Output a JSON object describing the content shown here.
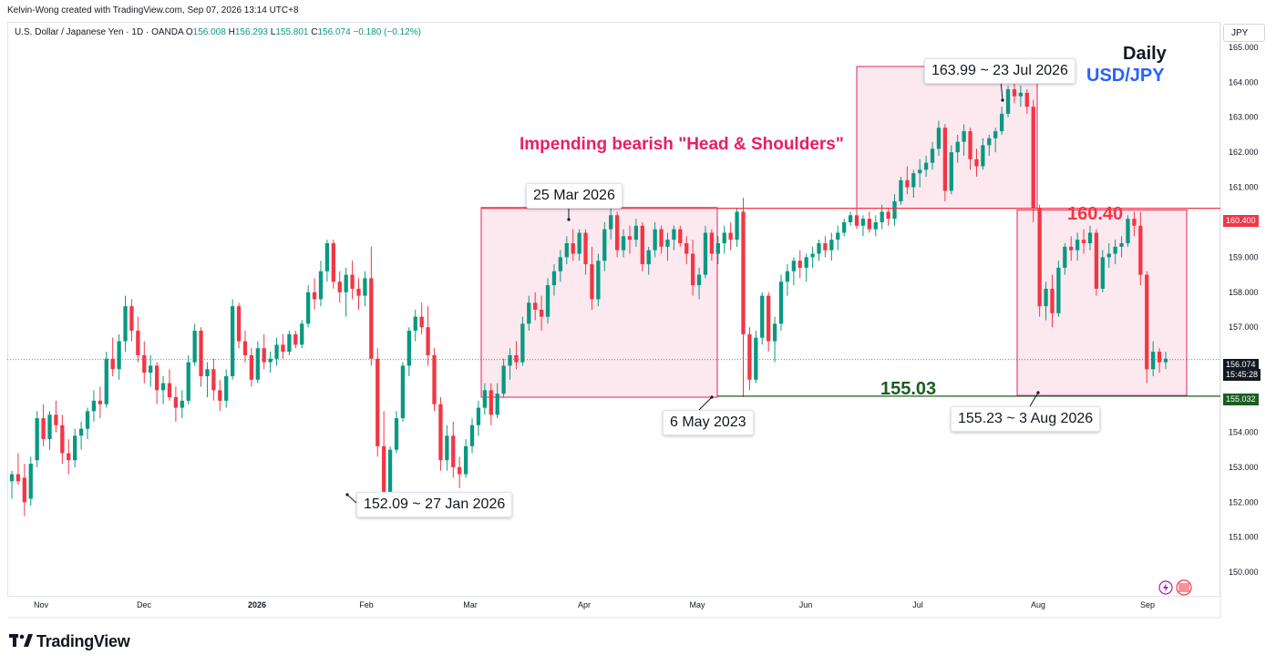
{
  "header": {
    "byline": "Kelvin-Wong created with TradingView.com, Sep 07, 2026 13:14 UTC+8",
    "symbol": "U.S. Dollar / Japanese Yen · 1D · OANDA",
    "open_label": "O",
    "open": "156.008",
    "high_label": "H",
    "high": "156.293",
    "low_label": "L",
    "low": "155.801",
    "close_label": "C",
    "close": "156.074",
    "change": "−0.180 (−0.12%)"
  },
  "currency": "JPY",
  "labels": {
    "daily": "Daily",
    "pair": "USD/JPY",
    "pattern": "Impending bearish \"Head & Shoulders\"",
    "resistance": "160.40",
    "support": "155.03"
  },
  "callouts": [
    {
      "id": "head",
      "text": "163.99 ~ 23 Jul 2026"
    },
    {
      "id": "left-shoulder",
      "text": "25 Mar 2026"
    },
    {
      "id": "may-low",
      "text": "6 May 2023"
    },
    {
      "id": "jan-low",
      "text": "152.09 ~ 27 Jan 2026"
    },
    {
      "id": "aug-low",
      "text": "155.23 ~ 3 Aug 2026"
    }
  ],
  "price_badges": {
    "resistance": "160.400",
    "support": "155.032",
    "last": "156.074",
    "countdown": "15:45:28"
  },
  "brand": "TradingView",
  "colors": {
    "up": "#089981",
    "down": "#f23645",
    "resistance": "#f23645",
    "support": "#1b5e20",
    "box_fill": "#fce4ec",
    "box_stroke": "#e91e63"
  },
  "chart_data": {
    "type": "candlestick",
    "y_axis": {
      "ticks": [
        "150.000",
        "151.000",
        "152.000",
        "153.000",
        "154.000",
        "155.000",
        "156.000",
        "157.000",
        "158.000",
        "159.000",
        "160.000",
        "161.000",
        "162.000",
        "163.000",
        "164.000",
        "165.000"
      ],
      "range": [
        149.3,
        165.7
      ]
    },
    "x_axis": {
      "ticks": [
        "Nov",
        "Dec",
        "2026",
        "Feb",
        "Mar",
        "Apr",
        "May",
        "Jun",
        "Jul",
        "Aug",
        "Sep"
      ]
    },
    "horizontal_lines": [
      {
        "value": 160.4
      },
      {
        "value": 155.03
      }
    ],
    "candles_ohlc": [
      [
        152.6,
        152.9,
        152.1,
        152.8
      ],
      [
        152.8,
        153.4,
        152.5,
        152.6
      ],
      [
        152.7,
        153.1,
        151.6,
        152.0
      ],
      [
        152.1,
        153.3,
        151.9,
        153.1
      ],
      [
        153.2,
        154.6,
        153.0,
        154.4
      ],
      [
        154.4,
        154.8,
        153.6,
        153.8
      ],
      [
        153.8,
        154.6,
        153.5,
        154.5
      ],
      [
        154.5,
        154.9,
        154.0,
        154.2
      ],
      [
        154.2,
        154.5,
        153.1,
        153.4
      ],
      [
        153.4,
        153.8,
        152.8,
        153.2
      ],
      [
        153.2,
        154.1,
        153.0,
        153.9
      ],
      [
        153.9,
        154.3,
        153.5,
        154.1
      ],
      [
        154.1,
        154.7,
        153.8,
        154.6
      ],
      [
        154.6,
        155.2,
        154.3,
        154.9
      ],
      [
        154.9,
        155.3,
        154.4,
        154.8
      ],
      [
        154.8,
        156.3,
        154.7,
        156.1
      ],
      [
        156.1,
        156.7,
        155.6,
        155.8
      ],
      [
        155.8,
        156.8,
        155.5,
        156.6
      ],
      [
        156.6,
        157.9,
        156.3,
        157.6
      ],
      [
        157.6,
        157.8,
        156.6,
        156.9
      ],
      [
        156.9,
        157.3,
        156.0,
        156.2
      ],
      [
        156.2,
        156.6,
        155.4,
        155.7
      ],
      [
        155.7,
        156.2,
        155.3,
        155.9
      ],
      [
        155.9,
        156.0,
        154.8,
        155.2
      ],
      [
        155.2,
        155.6,
        154.8,
        155.4
      ],
      [
        155.4,
        155.8,
        154.9,
        155.0
      ],
      [
        155.0,
        155.3,
        154.3,
        154.7
      ],
      [
        154.7,
        155.2,
        154.4,
        154.9
      ],
      [
        154.9,
        156.2,
        154.8,
        156.0
      ],
      [
        156.0,
        157.1,
        155.9,
        156.9
      ],
      [
        156.9,
        157.0,
        155.3,
        155.6
      ],
      [
        155.6,
        156.0,
        155.0,
        155.8
      ],
      [
        155.8,
        156.1,
        154.9,
        155.2
      ],
      [
        155.2,
        155.5,
        154.6,
        154.9
      ],
      [
        154.9,
        155.8,
        154.7,
        155.6
      ],
      [
        155.6,
        157.8,
        155.5,
        157.6
      ],
      [
        157.6,
        157.7,
        156.4,
        156.6
      ],
      [
        156.6,
        156.9,
        156.0,
        156.2
      ],
      [
        156.2,
        156.4,
        155.3,
        155.5
      ],
      [
        155.5,
        156.6,
        155.4,
        156.4
      ],
      [
        156.4,
        156.8,
        155.8,
        156.0
      ],
      [
        156.0,
        156.3,
        155.7,
        156.1
      ],
      [
        156.1,
        156.7,
        155.9,
        156.5
      ],
      [
        156.5,
        156.8,
        156.1,
        156.3
      ],
      [
        156.3,
        156.9,
        156.2,
        156.8
      ],
      [
        156.8,
        156.9,
        156.4,
        156.5
      ],
      [
        156.5,
        157.2,
        156.4,
        157.1
      ],
      [
        157.1,
        158.2,
        157.0,
        158.0
      ],
      [
        158.0,
        158.4,
        157.5,
        157.8
      ],
      [
        157.8,
        158.9,
        157.6,
        158.6
      ],
      [
        158.6,
        159.5,
        158.3,
        159.4
      ],
      [
        159.4,
        159.5,
        158.1,
        158.3
      ],
      [
        158.3,
        158.6,
        157.7,
        158.0
      ],
      [
        158.0,
        158.7,
        157.3,
        158.5
      ],
      [
        158.5,
        158.9,
        157.8,
        158.1
      ],
      [
        158.1,
        158.4,
        157.5,
        157.9
      ],
      [
        157.9,
        158.6,
        157.6,
        158.4
      ],
      [
        158.4,
        159.3,
        155.9,
        156.1
      ],
      [
        156.1,
        156.4,
        153.3,
        153.6
      ],
      [
        153.6,
        154.6,
        152.1,
        152.3
      ],
      [
        152.3,
        153.6,
        152.2,
        153.5
      ],
      [
        153.5,
        154.6,
        153.4,
        154.4
      ],
      [
        154.4,
        156.0,
        154.3,
        155.9
      ],
      [
        155.9,
        157.0,
        155.6,
        156.9
      ],
      [
        156.9,
        157.5,
        156.6,
        157.3
      ],
      [
        157.3,
        157.7,
        156.8,
        157.0
      ],
      [
        157.0,
        157.6,
        155.9,
        156.2
      ],
      [
        156.2,
        156.4,
        154.6,
        154.8
      ],
      [
        154.8,
        155.0,
        152.9,
        153.2
      ],
      [
        153.2,
        154.2,
        152.9,
        153.9
      ],
      [
        153.9,
        154.3,
        152.7,
        153.0
      ],
      [
        153.0,
        153.3,
        152.4,
        152.8
      ],
      [
        152.8,
        153.8,
        152.7,
        153.6
      ],
      [
        153.6,
        154.4,
        153.4,
        154.2
      ],
      [
        154.2,
        154.9,
        153.9,
        154.7
      ],
      [
        154.7,
        155.4,
        154.5,
        155.2
      ],
      [
        155.2,
        155.4,
        154.2,
        154.5
      ],
      [
        154.5,
        155.4,
        154.4,
        155.1
      ],
      [
        155.1,
        156.1,
        155.0,
        155.9
      ],
      [
        155.9,
        156.4,
        155.5,
        156.2
      ],
      [
        156.2,
        156.6,
        155.8,
        156.0
      ],
      [
        156.0,
        157.3,
        155.9,
        157.1
      ],
      [
        157.1,
        157.9,
        156.9,
        157.7
      ],
      [
        157.7,
        158.0,
        157.2,
        157.5
      ],
      [
        157.5,
        157.9,
        156.9,
        157.3
      ],
      [
        157.3,
        158.4,
        157.1,
        158.2
      ],
      [
        158.2,
        158.8,
        157.9,
        158.6
      ],
      [
        158.6,
        159.2,
        158.3,
        159.0
      ],
      [
        159.0,
        159.6,
        158.8,
        159.4
      ],
      [
        159.4,
        159.8,
        158.9,
        159.1
      ],
      [
        159.1,
        159.8,
        158.9,
        159.7
      ],
      [
        159.7,
        159.8,
        158.5,
        158.8
      ],
      [
        158.8,
        159.3,
        157.5,
        157.8
      ],
      [
        157.8,
        159.1,
        157.6,
        158.9
      ],
      [
        158.9,
        160.0,
        158.6,
        159.8
      ],
      [
        159.8,
        160.4,
        159.5,
        160.2
      ],
      [
        160.2,
        160.3,
        159.0,
        159.2
      ],
      [
        159.2,
        159.8,
        159.0,
        159.6
      ],
      [
        159.6,
        159.9,
        159.1,
        159.5
      ],
      [
        159.5,
        160.1,
        159.3,
        159.9
      ],
      [
        159.9,
        160.0,
        158.6,
        158.8
      ],
      [
        158.8,
        159.3,
        158.5,
        159.2
      ],
      [
        159.2,
        160.0,
        159.0,
        159.8
      ],
      [
        159.8,
        159.9,
        159.1,
        159.3
      ],
      [
        159.3,
        159.7,
        158.9,
        159.5
      ],
      [
        159.5,
        159.9,
        159.2,
        159.8
      ],
      [
        159.8,
        159.9,
        159.3,
        159.4
      ],
      [
        159.4,
        159.6,
        158.8,
        159.1
      ],
      [
        159.1,
        159.5,
        157.9,
        158.2
      ],
      [
        158.2,
        158.7,
        157.8,
        158.5
      ],
      [
        158.5,
        159.9,
        158.4,
        159.7
      ],
      [
        159.7,
        159.8,
        158.9,
        159.1
      ],
      [
        159.1,
        159.6,
        158.8,
        159.4
      ],
      [
        159.4,
        159.9,
        159.1,
        159.7
      ],
      [
        159.7,
        160.0,
        159.2,
        159.5
      ],
      [
        159.5,
        160.4,
        159.3,
        160.3
      ],
      [
        160.3,
        160.7,
        155.0,
        156.8
      ],
      [
        156.8,
        157.0,
        155.2,
        155.5
      ],
      [
        155.5,
        156.9,
        155.4,
        156.7
      ],
      [
        156.7,
        158.0,
        156.5,
        157.9
      ],
      [
        157.9,
        158.0,
        156.3,
        156.6
      ],
      [
        156.6,
        157.3,
        156.0,
        157.1
      ],
      [
        157.1,
        158.5,
        156.9,
        158.3
      ],
      [
        158.3,
        158.8,
        157.9,
        158.6
      ],
      [
        158.6,
        159.0,
        158.2,
        158.9
      ],
      [
        158.9,
        159.2,
        158.4,
        158.7
      ],
      [
        158.7,
        159.1,
        158.3,
        159.0
      ],
      [
        159.0,
        159.3,
        158.7,
        159.1
      ],
      [
        159.1,
        159.5,
        158.9,
        159.4
      ],
      [
        159.4,
        159.6,
        159.0,
        159.2
      ],
      [
        159.2,
        159.7,
        158.9,
        159.5
      ],
      [
        159.5,
        159.9,
        159.2,
        159.7
      ],
      [
        159.7,
        160.1,
        159.6,
        160.0
      ],
      [
        160.0,
        160.3,
        159.9,
        160.2
      ],
      [
        160.2,
        160.4,
        159.8,
        159.9
      ],
      [
        159.9,
        160.2,
        159.6,
        160.1
      ],
      [
        160.1,
        160.3,
        159.7,
        159.8
      ],
      [
        159.8,
        160.2,
        159.6,
        160.0
      ],
      [
        160.0,
        160.5,
        159.8,
        160.3
      ],
      [
        160.3,
        160.4,
        159.9,
        160.1
      ],
      [
        160.1,
        160.8,
        159.9,
        160.6
      ],
      [
        160.6,
        161.3,
        160.5,
        161.2
      ],
      [
        161.2,
        161.6,
        160.8,
        161.0
      ],
      [
        161.0,
        161.5,
        160.7,
        161.4
      ],
      [
        161.4,
        161.8,
        161.0,
        161.5
      ],
      [
        161.5,
        161.9,
        161.3,
        161.7
      ],
      [
        161.7,
        162.3,
        161.5,
        162.1
      ],
      [
        162.1,
        162.9,
        161.9,
        162.7
      ],
      [
        162.7,
        162.8,
        160.6,
        160.9
      ],
      [
        160.9,
        162.2,
        160.8,
        162.0
      ],
      [
        162.0,
        162.5,
        161.7,
        162.3
      ],
      [
        162.3,
        162.8,
        161.9,
        162.6
      ],
      [
        162.6,
        162.7,
        161.5,
        161.8
      ],
      [
        161.8,
        162.1,
        161.3,
        161.6
      ],
      [
        161.6,
        162.4,
        161.5,
        162.2
      ],
      [
        162.2,
        162.5,
        161.9,
        162.4
      ],
      [
        162.4,
        162.7,
        162.0,
        162.6
      ],
      [
        162.6,
        163.3,
        162.5,
        163.1
      ],
      [
        163.1,
        163.9,
        163.0,
        163.8
      ],
      [
        163.8,
        164.0,
        163.4,
        163.6
      ],
      [
        163.6,
        163.9,
        163.3,
        163.7
      ],
      [
        163.7,
        163.8,
        163.1,
        163.3
      ],
      [
        163.3,
        163.5,
        160.0,
        160.4
      ],
      [
        160.4,
        160.5,
        157.3,
        157.6
      ],
      [
        157.6,
        158.3,
        157.2,
        158.1
      ],
      [
        158.1,
        158.5,
        157.0,
        157.4
      ],
      [
        157.4,
        158.9,
        157.3,
        158.7
      ],
      [
        158.7,
        159.4,
        158.5,
        159.3
      ],
      [
        159.3,
        159.6,
        158.9,
        159.2
      ],
      [
        159.2,
        159.7,
        158.9,
        159.5
      ],
      [
        159.5,
        159.8,
        159.1,
        159.4
      ],
      [
        159.4,
        159.9,
        159.2,
        159.7
      ],
      [
        159.7,
        159.8,
        157.9,
        158.1
      ],
      [
        158.1,
        159.2,
        158.0,
        159.0
      ],
      [
        159.0,
        159.4,
        158.7,
        159.1
      ],
      [
        159.1,
        159.5,
        158.8,
        159.3
      ],
      [
        159.3,
        159.6,
        159.0,
        159.4
      ],
      [
        159.4,
        160.2,
        159.3,
        160.1
      ],
      [
        160.1,
        160.3,
        159.6,
        159.9
      ],
      [
        159.9,
        160.3,
        158.2,
        158.5
      ],
      [
        158.5,
        158.6,
        155.4,
        155.8
      ],
      [
        155.8,
        156.6,
        155.6,
        156.3
      ],
      [
        156.3,
        156.4,
        155.7,
        156.0
      ],
      [
        156.0,
        156.3,
        155.8,
        156.1
      ]
    ]
  }
}
